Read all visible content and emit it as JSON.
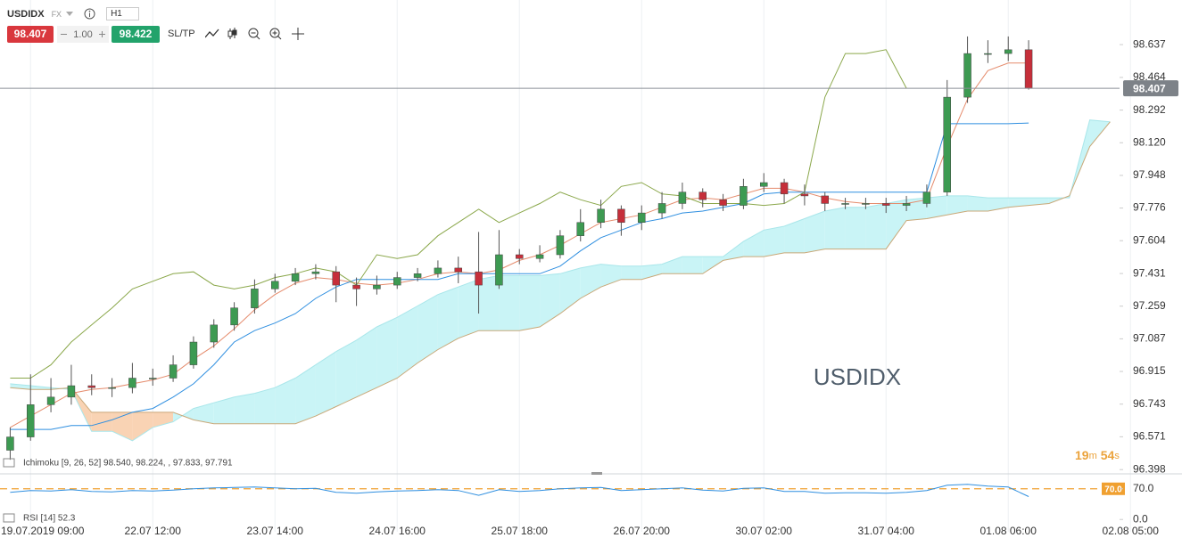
{
  "header": {
    "symbol": "USDIDX",
    "market": "FX",
    "timeframe": "H1",
    "bid": "98.407",
    "lot": "1.00",
    "ask": "98.422",
    "sltp": "SL/TP"
  },
  "chart_data": {
    "type": "candlestick",
    "watermark": "USDIDX",
    "indicator_label": "Ichimoku [9, 26, 52] 98.540, 98.224, , 97.833, 97.791",
    "timer": [
      "19",
      "m",
      "54",
      "s"
    ],
    "grid": "x",
    "up_color": "#3d9a52",
    "down_color": "#c62f3a",
    "categories": [
      null,
      "19.07.2019 09:00",
      null,
      null,
      null,
      null,
      null,
      "22.07 12:00",
      null,
      null,
      null,
      null,
      null,
      "23.07 14:00",
      null,
      null,
      null,
      null,
      null,
      "24.07 16:00",
      null,
      null,
      null,
      null,
      null,
      "25.07 18:00",
      null,
      null,
      null,
      null,
      null,
      "26.07 20:00",
      null,
      null,
      null,
      null,
      null,
      "30.07 02:00",
      null,
      null,
      null,
      null,
      null,
      "31.07 04:00",
      null,
      null,
      null,
      null,
      null,
      "01.08 06:00",
      null,
      null,
      null,
      null,
      null,
      "02.08 05:00"
    ],
    "ylim": [
      96.385,
      98.872
    ],
    "yticks": [
      98.637,
      98.464,
      98.292,
      {
        "value": 98.12,
        "label": "98.120"
      },
      97.948,
      97.776,
      97.604,
      97.431,
      97.259,
      97.087,
      96.915,
      96.743,
      96.571,
      96.398
    ],
    "ohlc": [
      [
        96.5,
        96.62,
        96.45,
        96.57
      ],
      [
        96.57,
        96.9,
        96.55,
        96.74
      ],
      [
        96.74,
        96.88,
        96.7,
        96.78
      ],
      [
        96.78,
        96.95,
        96.74,
        96.84
      ],
      [
        96.84,
        96.9,
        96.79,
        96.83
      ],
      [
        96.83,
        96.88,
        96.78,
        96.83
      ],
      [
        96.83,
        96.96,
        96.8,
        96.88
      ],
      [
        96.88,
        96.93,
        96.84,
        96.88
      ],
      [
        96.88,
        97.0,
        96.86,
        96.95
      ],
      [
        96.95,
        97.1,
        96.93,
        97.07
      ],
      [
        97.07,
        97.19,
        97.04,
        97.16
      ],
      [
        97.16,
        97.28,
        97.13,
        97.25
      ],
      [
        97.25,
        97.4,
        97.22,
        97.35
      ],
      [
        97.35,
        97.43,
        97.33,
        97.39
      ],
      [
        97.39,
        97.46,
        97.37,
        97.43
      ],
      [
        97.43,
        97.48,
        97.4,
        97.44
      ],
      [
        97.44,
        97.47,
        97.28,
        97.37
      ],
      [
        97.37,
        97.41,
        97.26,
        97.35
      ],
      [
        97.35,
        97.42,
        97.32,
        97.37
      ],
      [
        97.37,
        97.44,
        97.35,
        97.41
      ],
      [
        97.41,
        97.46,
        97.39,
        97.43
      ],
      [
        97.43,
        97.5,
        97.41,
        97.46
      ],
      [
        97.46,
        97.52,
        97.38,
        97.44
      ],
      [
        97.44,
        97.65,
        97.22,
        97.37
      ],
      [
        97.37,
        97.66,
        97.35,
        97.53
      ],
      [
        97.53,
        97.56,
        97.48,
        97.51
      ],
      [
        97.51,
        97.58,
        97.49,
        97.53
      ],
      [
        97.53,
        97.66,
        97.51,
        97.63
      ],
      [
        97.63,
        97.77,
        97.6,
        97.7
      ],
      [
        97.7,
        97.82,
        97.67,
        97.77
      ],
      [
        97.77,
        97.79,
        97.63,
        97.7
      ],
      [
        97.7,
        97.79,
        97.66,
        97.75
      ],
      [
        97.75,
        97.86,
        97.72,
        97.8
      ],
      [
        97.8,
        97.91,
        97.77,
        97.86
      ],
      [
        97.86,
        97.88,
        97.78,
        97.82
      ],
      [
        97.82,
        97.85,
        97.76,
        97.79
      ],
      [
        97.79,
        97.93,
        97.77,
        97.89
      ],
      [
        97.89,
        97.96,
        97.86,
        97.91
      ],
      [
        97.91,
        97.93,
        97.8,
        97.85
      ],
      [
        97.85,
        97.9,
        97.79,
        97.84
      ],
      [
        97.84,
        97.86,
        97.76,
        97.8
      ],
      [
        97.8,
        97.83,
        97.77,
        97.8
      ],
      [
        97.8,
        97.83,
        97.77,
        97.8
      ],
      [
        97.8,
        97.83,
        97.75,
        97.79
      ],
      [
        97.79,
        97.84,
        97.76,
        97.8
      ],
      [
        97.8,
        97.9,
        97.78,
        97.86
      ],
      [
        97.86,
        98.45,
        97.84,
        98.36
      ],
      [
        98.36,
        98.68,
        98.33,
        98.59
      ],
      [
        98.59,
        98.66,
        98.54,
        98.59
      ],
      [
        98.59,
        98.68,
        98.55,
        98.61
      ],
      [
        98.61,
        98.66,
        98.4,
        98.407
      ],
      null,
      null,
      null,
      null,
      null
    ],
    "lines": [
      {
        "color": "#e58b6c",
        "values": [
          96.62,
          96.68,
          96.74,
          96.8,
          96.82,
          96.83,
          96.85,
          96.87,
          96.9,
          96.98,
          97.05,
          97.14,
          97.24,
          97.32,
          97.38,
          97.41,
          97.4,
          97.38,
          97.37,
          97.38,
          97.4,
          97.43,
          97.44,
          97.43,
          97.45,
          97.5,
          97.53,
          97.58,
          97.64,
          97.7,
          97.72,
          97.74,
          97.78,
          97.82,
          97.83,
          97.82,
          97.85,
          97.88,
          97.88,
          97.86,
          97.83,
          97.81,
          97.8,
          97.8,
          97.8,
          97.82,
          98.1,
          98.35,
          98.5,
          98.54,
          98.54,
          null,
          null,
          null,
          null,
          null
        ]
      },
      {
        "color": "#2f8fe0",
        "values": [
          96.61,
          96.61,
          96.61,
          96.63,
          96.63,
          96.66,
          96.7,
          96.72,
          96.78,
          96.85,
          96.95,
          97.07,
          97.13,
          97.17,
          97.22,
          97.3,
          97.36,
          97.4,
          97.4,
          97.4,
          97.4,
          97.4,
          97.43,
          97.43,
          97.43,
          97.43,
          97.43,
          97.47,
          97.55,
          97.62,
          97.66,
          97.7,
          97.72,
          97.75,
          97.76,
          97.78,
          97.8,
          97.85,
          97.86,
          97.86,
          97.86,
          97.86,
          97.86,
          97.86,
          97.86,
          97.86,
          98.22,
          98.22,
          98.22,
          98.22,
          98.224,
          null,
          null,
          null,
          null,
          null
        ]
      },
      {
        "color": "#8aa74a",
        "values": [
          96.88,
          96.88,
          96.95,
          97.07,
          97.16,
          97.25,
          97.35,
          97.39,
          97.43,
          97.44,
          97.37,
          97.35,
          97.37,
          97.41,
          97.43,
          97.46,
          97.44,
          97.37,
          97.53,
          97.51,
          97.53,
          97.63,
          97.7,
          97.77,
          97.7,
          97.75,
          97.8,
          97.86,
          97.82,
          97.79,
          97.89,
          97.91,
          97.85,
          97.84,
          97.8,
          97.8,
          97.8,
          97.79,
          97.8,
          97.86,
          98.36,
          98.59,
          98.59,
          98.61,
          98.407,
          null,
          null,
          null,
          null,
          null,
          null,
          null,
          null,
          null,
          null,
          null
        ]
      }
    ],
    "cloud": {
      "bull_color": "#c9f4f6",
      "bear_color": "#f9d3b4",
      "span_a_color": "#a9e6ea",
      "span_b_color": "#c9a878",
      "span_a": [
        96.85,
        96.84,
        96.83,
        96.82,
        96.6,
        96.6,
        96.55,
        96.62,
        96.65,
        96.72,
        96.75,
        96.78,
        96.8,
        96.83,
        96.88,
        96.95,
        97.02,
        97.08,
        97.15,
        97.2,
        97.26,
        97.32,
        97.36,
        97.4,
        97.42,
        97.42,
        97.42,
        97.43,
        97.46,
        97.48,
        97.47,
        97.47,
        97.48,
        97.52,
        97.52,
        97.52,
        97.6,
        97.66,
        97.68,
        97.72,
        97.76,
        97.78,
        97.78,
        97.8,
        97.82,
        97.83,
        97.84,
        97.84,
        97.83,
        97.83,
        97.83,
        97.83,
        97.83,
        98.24,
        98.23,
        null
      ],
      "span_b": [
        96.83,
        96.82,
        96.82,
        96.83,
        96.7,
        96.7,
        96.7,
        96.7,
        96.7,
        96.66,
        96.64,
        96.64,
        96.64,
        96.64,
        96.64,
        96.68,
        96.73,
        96.78,
        96.83,
        96.88,
        96.96,
        97.03,
        97.09,
        97.13,
        97.13,
        97.13,
        97.15,
        97.22,
        97.3,
        97.36,
        97.4,
        97.4,
        97.43,
        97.43,
        97.43,
        97.5,
        97.52,
        97.52,
        97.54,
        97.54,
        97.56,
        97.56,
        97.56,
        97.56,
        97.71,
        97.72,
        97.74,
        97.76,
        97.76,
        97.78,
        97.79,
        97.8,
        97.84,
        98.1,
        98.23,
        null
      ]
    },
    "rsi": {
      "label": "RSI [14] 52.3",
      "color": "#2f8fe0",
      "level_color": "#f0a030",
      "ylim": [
        -28,
        100
      ],
      "yticks": [
        {
          "value": 70,
          "label": "70.0"
        },
        {
          "value": 0,
          "label": "0.0"
        }
      ],
      "level": {
        "value": 70,
        "label": "70.0"
      },
      "values": [
        62,
        66,
        65,
        68,
        64,
        63,
        66,
        65,
        67,
        70,
        72,
        73,
        74,
        72,
        70,
        71,
        62,
        60,
        63,
        65,
        66,
        68,
        66,
        55,
        68,
        64,
        66,
        70,
        72,
        73,
        66,
        68,
        70,
        72,
        67,
        65,
        71,
        72,
        64,
        64,
        60,
        61,
        61,
        60,
        62,
        66,
        78,
        80,
        76,
        74,
        52.3,
        null,
        null,
        null,
        null,
        null
      ]
    }
  }
}
